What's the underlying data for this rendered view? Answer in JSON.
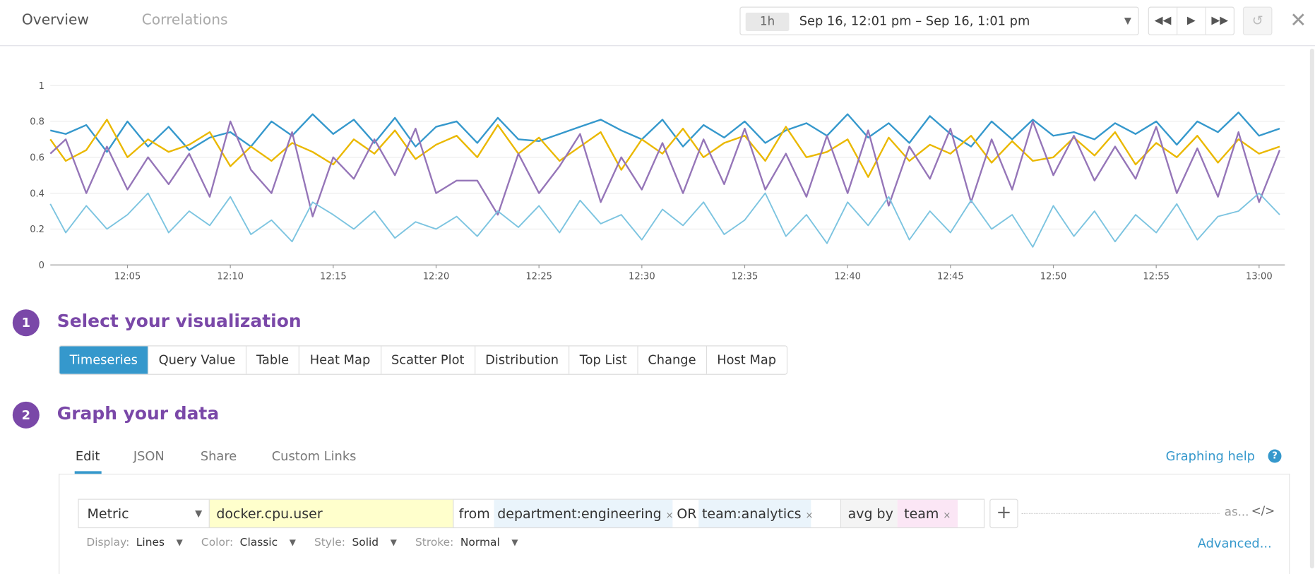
{
  "header": {
    "tabs": [
      {
        "label": "Overview",
        "active": true
      },
      {
        "label": "Correlations",
        "active": false
      }
    ],
    "time_picker": {
      "preset": "1h",
      "range": "Sep 16, 12:01 pm – Sep 16, 1:01 pm"
    },
    "icons": {
      "rewind": "rewind-icon",
      "play": "play-icon",
      "forward": "fast-forward-icon",
      "reload": "undo-icon",
      "close": "close-icon"
    }
  },
  "chart_data": {
    "type": "line",
    "ylim": [
      0,
      1
    ],
    "y_ticks": [
      "0",
      "0.2",
      "0.4",
      "0.6",
      "0.8",
      "1"
    ],
    "x_ticks": [
      "12:05",
      "12:10",
      "12:15",
      "12:20",
      "12:25",
      "12:30",
      "12:35",
      "12:40",
      "12:45",
      "12:50",
      "12:55",
      "13:00"
    ],
    "x_range": [
      "12:01",
      "13:01"
    ],
    "grid": true,
    "series": [
      {
        "color": "#3598cc",
        "values": [
          0.75,
          0.73,
          0.78,
          0.63,
          0.8,
          0.66,
          0.77,
          0.64,
          0.71,
          0.74,
          0.66,
          0.8,
          0.72,
          0.84,
          0.73,
          0.81,
          0.68,
          0.82,
          0.66,
          0.77,
          0.8,
          0.68,
          0.82,
          0.7,
          0.69,
          0.73,
          0.77,
          0.81,
          0.75,
          0.7,
          0.81,
          0.66,
          0.78,
          0.71,
          0.8,
          0.68,
          0.75,
          0.79,
          0.72,
          0.84,
          0.71,
          0.79,
          0.68,
          0.83,
          0.73,
          0.66,
          0.8,
          0.7,
          0.81,
          0.72,
          0.74,
          0.7,
          0.79,
          0.73,
          0.8,
          0.67,
          0.8,
          0.74,
          0.85,
          0.72,
          0.76
        ]
      },
      {
        "color": "#eab800",
        "values": [
          0.7,
          0.58,
          0.64,
          0.81,
          0.6,
          0.7,
          0.63,
          0.67,
          0.74,
          0.55,
          0.66,
          0.58,
          0.68,
          0.63,
          0.56,
          0.7,
          0.62,
          0.75,
          0.59,
          0.67,
          0.72,
          0.6,
          0.78,
          0.62,
          0.71,
          0.58,
          0.66,
          0.74,
          0.53,
          0.7,
          0.62,
          0.76,
          0.6,
          0.68,
          0.72,
          0.58,
          0.77,
          0.6,
          0.63,
          0.7,
          0.49,
          0.71,
          0.58,
          0.67,
          0.62,
          0.72,
          0.57,
          0.69,
          0.58,
          0.6,
          0.71,
          0.61,
          0.74,
          0.56,
          0.68,
          0.6,
          0.72,
          0.57,
          0.7,
          0.62,
          0.66
        ]
      },
      {
        "color": "#9575b8",
        "values": [
          0.62,
          0.7,
          0.4,
          0.66,
          0.42,
          0.6,
          0.45,
          0.62,
          0.38,
          0.8,
          0.53,
          0.4,
          0.74,
          0.27,
          0.6,
          0.48,
          0.7,
          0.5,
          0.76,
          0.4,
          0.47,
          0.47,
          0.28,
          0.62,
          0.4,
          0.55,
          0.73,
          0.35,
          0.6,
          0.42,
          0.68,
          0.4,
          0.7,
          0.45,
          0.76,
          0.42,
          0.62,
          0.38,
          0.72,
          0.4,
          0.75,
          0.33,
          0.66,
          0.48,
          0.76,
          0.35,
          0.7,
          0.42,
          0.8,
          0.5,
          0.72,
          0.47,
          0.66,
          0.48,
          0.77,
          0.4,
          0.65,
          0.38,
          0.74,
          0.35,
          0.64
        ]
      },
      {
        "color": "#7cc4e0",
        "values": [
          0.34,
          0.18,
          0.33,
          0.2,
          0.28,
          0.4,
          0.18,
          0.3,
          0.22,
          0.38,
          0.17,
          0.25,
          0.13,
          0.35,
          0.28,
          0.2,
          0.3,
          0.15,
          0.24,
          0.2,
          0.27,
          0.16,
          0.3,
          0.21,
          0.33,
          0.18,
          0.36,
          0.23,
          0.28,
          0.14,
          0.31,
          0.22,
          0.35,
          0.17,
          0.25,
          0.4,
          0.16,
          0.28,
          0.12,
          0.35,
          0.22,
          0.38,
          0.14,
          0.3,
          0.18,
          0.36,
          0.2,
          0.28,
          0.1,
          0.33,
          0.16,
          0.3,
          0.13,
          0.28,
          0.18,
          0.34,
          0.14,
          0.27,
          0.3,
          0.4,
          0.28
        ]
      }
    ]
  },
  "step1": {
    "number": "1",
    "title": "Select your visualization",
    "options": [
      "Timeseries",
      "Query Value",
      "Table",
      "Heat Map",
      "Scatter Plot",
      "Distribution",
      "Top List",
      "Change",
      "Host Map"
    ],
    "selected": "Timeseries"
  },
  "step2": {
    "number": "2",
    "title": "Graph your data",
    "tabs": [
      "Edit",
      "JSON",
      "Share",
      "Custom Links"
    ],
    "active_tab": "Edit",
    "help": "Graphing help",
    "query": {
      "type": "Metric",
      "metric": "docker.cpu.user",
      "from_label": "from",
      "tag1": "department:engineering",
      "or_label": "OR",
      "tag2": "team:analytics",
      "avg_label": "avg by",
      "group": "team",
      "remove": "×",
      "alias": "as...",
      "code": "</>"
    },
    "options": {
      "display_label": "Display:",
      "display": "Lines",
      "color_label": "Color:",
      "color": "Classic",
      "style_label": "Style:",
      "style": "Solid",
      "stroke_label": "Stroke:",
      "stroke": "Normal"
    },
    "advanced": "Advanced..."
  }
}
